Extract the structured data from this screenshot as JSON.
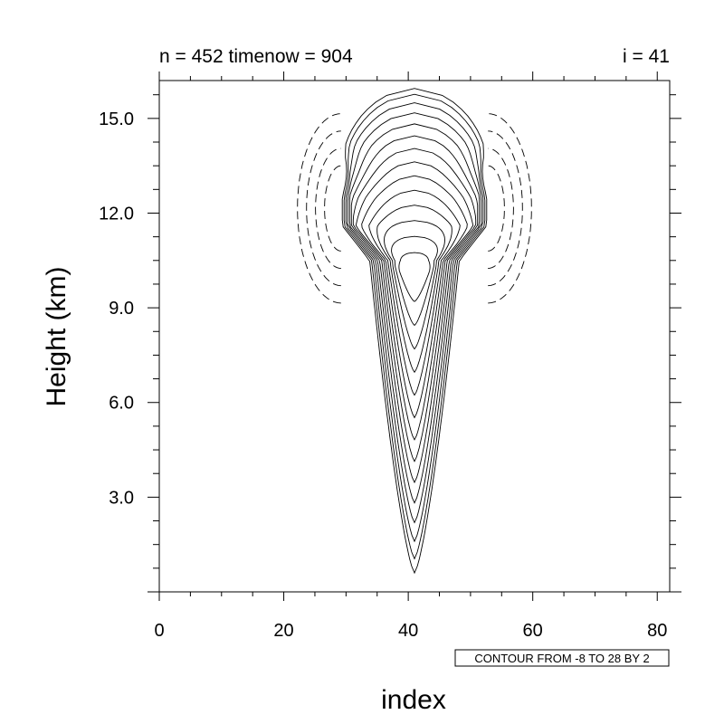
{
  "chart_data": {
    "type": "contour",
    "title_left": "n = 452 timenow = 904",
    "title_right": "i = 41",
    "xlabel": "index",
    "ylabel": "Height (km)",
    "xlim": [
      0,
      82
    ],
    "ylim": [
      0,
      16.2
    ],
    "x_ticks": [
      0,
      20,
      40,
      60,
      80
    ],
    "x_tick_labels": [
      "0",
      "20",
      "40",
      "60",
      "80"
    ],
    "y_ticks": [
      3,
      6,
      9,
      12,
      15
    ],
    "y_tick_labels": [
      "3.0",
      "6.0",
      "9.0",
      "12.0",
      "15.0"
    ],
    "contour_min": -8,
    "contour_max": 28,
    "contour_interval": 2,
    "negative_contours_dashed": true,
    "info_label": "CONTOUR FROM -8 TO 28 BY 2",
    "grid": false
  }
}
